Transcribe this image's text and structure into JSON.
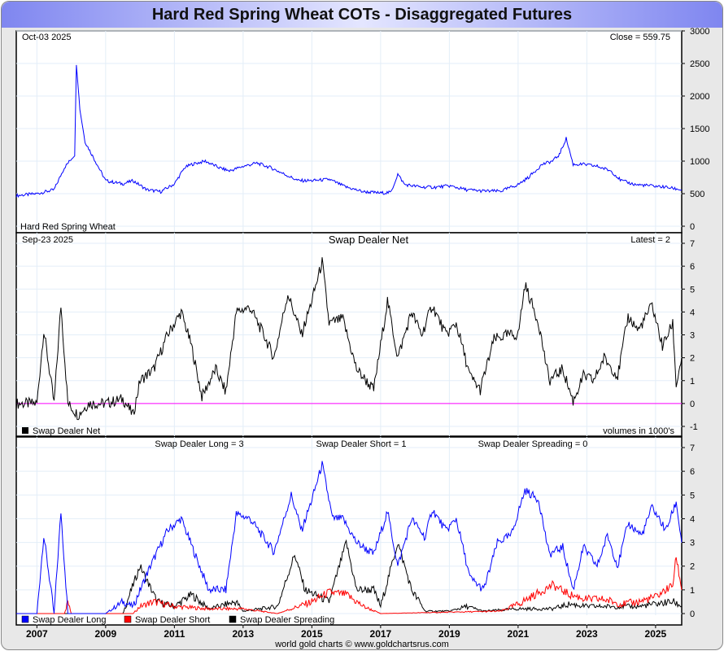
{
  "title": "Hard Red Spring Wheat COTs - Disaggregated Futures",
  "footer": "world gold charts © www.goldchartsrus.com",
  "colors": {
    "price": "#0000ff",
    "net": "#000000",
    "zero": "#ff00ff",
    "long": "#0000ff",
    "short": "#ff0000",
    "spreading": "#000000"
  },
  "chart_data": [
    {
      "type": "line",
      "panel": "price",
      "date": "Oct-03  2025",
      "readout": "Close = 559.75",
      "legend": "Hard Red Spring Wheat",
      "ylim": [
        0,
        3000
      ],
      "yticks": [
        0,
        500,
        1000,
        1500,
        2000,
        2500,
        3000
      ],
      "series": [
        {
          "name": "Hard Red Spring Wheat",
          "points": [
            [
              2006.4,
              470
            ],
            [
              2007.0,
              500
            ],
            [
              2007.5,
              560
            ],
            [
              2007.8,
              900
            ],
            [
              2008.1,
              1100
            ],
            [
              2008.15,
              2500
            ],
            [
              2008.25,
              1800
            ],
            [
              2008.4,
              1300
            ],
            [
              2008.7,
              1000
            ],
            [
              2009.0,
              700
            ],
            [
              2009.5,
              650
            ],
            [
              2009.8,
              700
            ],
            [
              2010.2,
              560
            ],
            [
              2010.6,
              530
            ],
            [
              2011.0,
              650
            ],
            [
              2011.3,
              900
            ],
            [
              2011.5,
              950
            ],
            [
              2011.9,
              1000
            ],
            [
              2012.3,
              900
            ],
            [
              2012.6,
              850
            ],
            [
              2013.0,
              920
            ],
            [
              2013.4,
              970
            ],
            [
              2013.8,
              900
            ],
            [
              2014.2,
              800
            ],
            [
              2014.6,
              700
            ],
            [
              2015.0,
              700
            ],
            [
              2015.5,
              720
            ],
            [
              2016.0,
              600
            ],
            [
              2016.5,
              530
            ],
            [
              2017.0,
              510
            ],
            [
              2017.3,
              520
            ],
            [
              2017.5,
              800
            ],
            [
              2017.7,
              640
            ],
            [
              2018.2,
              600
            ],
            [
              2018.6,
              600
            ],
            [
              2019.0,
              620
            ],
            [
              2019.5,
              560
            ],
            [
              2020.0,
              540
            ],
            [
              2020.5,
              540
            ],
            [
              2021.0,
              640
            ],
            [
              2021.3,
              750
            ],
            [
              2021.7,
              950
            ],
            [
              2022.0,
              1000
            ],
            [
              2022.2,
              1100
            ],
            [
              2022.4,
              1350
            ],
            [
              2022.6,
              950
            ],
            [
              2022.9,
              950
            ],
            [
              2023.3,
              920
            ],
            [
              2023.7,
              850
            ],
            [
              2024.0,
              700
            ],
            [
              2024.4,
              640
            ],
            [
              2024.9,
              620
            ],
            [
              2025.3,
              600
            ],
            [
              2025.76,
              560
            ]
          ]
        }
      ]
    },
    {
      "type": "line",
      "panel": "net",
      "date": "Sep-23  2025",
      "title": "Swap Dealer Net",
      "readout": "Latest = 2",
      "legend": "Swap Dealer Net",
      "note": "volumes in 1000's",
      "ylim": [
        -1,
        7
      ],
      "yticks": [
        -1,
        0,
        1,
        2,
        3,
        4,
        5,
        6,
        7
      ],
      "series": [
        {
          "name": "Swap Dealer Net",
          "points": [
            [
              2006.4,
              0
            ],
            [
              2007.0,
              0
            ],
            [
              2007.2,
              3.2
            ],
            [
              2007.5,
              0
            ],
            [
              2007.7,
              4.3
            ],
            [
              2007.9,
              0
            ],
            [
              2008.2,
              -0.5
            ],
            [
              2008.5,
              0
            ],
            [
              2009.0,
              0
            ],
            [
              2009.5,
              0.2
            ],
            [
              2009.8,
              -0.5
            ],
            [
              2010.0,
              1
            ],
            [
              2010.4,
              1.5
            ],
            [
              2010.8,
              3
            ],
            [
              2011.2,
              4
            ],
            [
              2011.5,
              2.5
            ],
            [
              2011.8,
              0.3
            ],
            [
              2012.2,
              1.5
            ],
            [
              2012.5,
              0.5
            ],
            [
              2012.8,
              4
            ],
            [
              2013.2,
              4.2
            ],
            [
              2013.6,
              3
            ],
            [
              2013.9,
              2
            ],
            [
              2014.3,
              4.8
            ],
            [
              2014.7,
              3
            ],
            [
              2015.0,
              4.5
            ],
            [
              2015.3,
              6.2
            ],
            [
              2015.5,
              3.5
            ],
            [
              2015.9,
              3.7
            ],
            [
              2016.3,
              1.5
            ],
            [
              2016.8,
              0.6
            ],
            [
              2017.2,
              4.5
            ],
            [
              2017.5,
              2
            ],
            [
              2017.9,
              4
            ],
            [
              2018.2,
              3
            ],
            [
              2018.5,
              4.3
            ],
            [
              2018.9,
              3
            ],
            [
              2019.2,
              3.5
            ],
            [
              2019.6,
              1.2
            ],
            [
              2019.9,
              0.6
            ],
            [
              2020.3,
              2.8
            ],
            [
              2020.7,
              3
            ],
            [
              2021.0,
              3
            ],
            [
              2021.2,
              5.2
            ],
            [
              2021.6,
              3.5
            ],
            [
              2021.9,
              1
            ],
            [
              2022.3,
              1.5
            ],
            [
              2022.6,
              0.1
            ],
            [
              2022.9,
              1.2
            ],
            [
              2023.2,
              1
            ],
            [
              2023.5,
              2
            ],
            [
              2023.9,
              1.2
            ],
            [
              2024.2,
              3.8
            ],
            [
              2024.5,
              3.2
            ],
            [
              2024.9,
              4.3
            ],
            [
              2025.2,
              2.5
            ],
            [
              2025.5,
              3.5
            ],
            [
              2025.6,
              0.8
            ],
            [
              2025.76,
              2
            ]
          ]
        }
      ]
    },
    {
      "type": "line",
      "panel": "components",
      "labels": [
        "Swap Dealer Long = 3",
        "Swap Dealer Short = 1",
        "Swap Dealer Spreading = 0"
      ],
      "ylim": [
        0,
        7
      ],
      "yticks": [
        0,
        1,
        2,
        3,
        4,
        5,
        6,
        7
      ],
      "xticks": [
        "2007",
        "2009",
        "2011",
        "2013",
        "2015",
        "2017",
        "2019",
        "2021",
        "2023",
        "2025"
      ],
      "series": [
        {
          "name": "Swap Dealer Long",
          "key": "long",
          "points": [
            [
              2006.4,
              0
            ],
            [
              2007.0,
              0
            ],
            [
              2007.2,
              3.3
            ],
            [
              2007.5,
              0
            ],
            [
              2007.7,
              4.3
            ],
            [
              2007.9,
              0
            ],
            [
              2009.0,
              0
            ],
            [
              2009.5,
              0.5
            ],
            [
              2009.8,
              0.3
            ],
            [
              2010.3,
              2
            ],
            [
              2010.8,
              3.5
            ],
            [
              2011.2,
              4
            ],
            [
              2011.6,
              2.5
            ],
            [
              2012.0,
              1
            ],
            [
              2012.5,
              1
            ],
            [
              2012.8,
              4.2
            ],
            [
              2013.2,
              4
            ],
            [
              2013.6,
              3.2
            ],
            [
              2013.9,
              2.6
            ],
            [
              2014.4,
              5
            ],
            [
              2014.7,
              3.5
            ],
            [
              2015.0,
              4.8
            ],
            [
              2015.3,
              6.3
            ],
            [
              2015.6,
              4
            ],
            [
              2015.9,
              4
            ],
            [
              2016.3,
              3
            ],
            [
              2016.8,
              2.5
            ],
            [
              2017.2,
              4.3
            ],
            [
              2017.5,
              2
            ],
            [
              2017.9,
              4
            ],
            [
              2018.3,
              3.2
            ],
            [
              2018.5,
              4.4
            ],
            [
              2018.9,
              3.5
            ],
            [
              2019.2,
              4
            ],
            [
              2019.6,
              1.5
            ],
            [
              2020.0,
              1
            ],
            [
              2020.4,
              3
            ],
            [
              2020.8,
              3.3
            ],
            [
              2021.2,
              5.2
            ],
            [
              2021.6,
              4.8
            ],
            [
              2021.9,
              2.5
            ],
            [
              2022.3,
              2.8
            ],
            [
              2022.6,
              1
            ],
            [
              2022.9,
              2.8
            ],
            [
              2023.3,
              2
            ],
            [
              2023.6,
              3.3
            ],
            [
              2023.9,
              2
            ],
            [
              2024.2,
              3.8
            ],
            [
              2024.6,
              3.3
            ],
            [
              2024.9,
              4.5
            ],
            [
              2025.3,
              3.5
            ],
            [
              2025.6,
              4.7
            ],
            [
              2025.76,
              3
            ]
          ]
        },
        {
          "name": "Swap Dealer Short",
          "key": "short",
          "points": [
            [
              2006.4,
              0
            ],
            [
              2007.8,
              0
            ],
            [
              2007.9,
              0.5
            ],
            [
              2008.0,
              0
            ],
            [
              2009.8,
              0
            ],
            [
              2010.0,
              0.3
            ],
            [
              2010.4,
              0.5
            ],
            [
              2011.0,
              0.3
            ],
            [
              2012.0,
              0.2
            ],
            [
              2013.0,
              0.2
            ],
            [
              2014.0,
              0
            ],
            [
              2015.0,
              0.5
            ],
            [
              2015.5,
              0.9
            ],
            [
              2016.0,
              0.8
            ],
            [
              2016.5,
              0.3
            ],
            [
              2017.0,
              0
            ],
            [
              2020.5,
              0.1
            ],
            [
              2021.0,
              0.4
            ],
            [
              2021.5,
              0.8
            ],
            [
              2022.0,
              1.2
            ],
            [
              2022.5,
              0.8
            ],
            [
              2023.0,
              0.6
            ],
            [
              2023.5,
              0.6
            ],
            [
              2024.0,
              0.4
            ],
            [
              2024.5,
              0.5
            ],
            [
              2025.0,
              0.7
            ],
            [
              2025.5,
              1.2
            ],
            [
              2025.6,
              2.4
            ],
            [
              2025.76,
              1
            ]
          ]
        },
        {
          "name": "Swap Dealer Spreading",
          "key": "spreading",
          "points": [
            [
              2006.4,
              0
            ],
            [
              2009.5,
              0
            ],
            [
              2010.0,
              2
            ],
            [
              2010.5,
              0.5
            ],
            [
              2011.0,
              0.3
            ],
            [
              2011.5,
              0.8
            ],
            [
              2012.0,
              0.2
            ],
            [
              2012.8,
              0.5
            ],
            [
              2013.0,
              0.1
            ],
            [
              2014.0,
              0.3
            ],
            [
              2014.5,
              2.5
            ],
            [
              2014.8,
              1
            ],
            [
              2015.5,
              0.5
            ],
            [
              2016.0,
              3
            ],
            [
              2016.3,
              1
            ],
            [
              2016.8,
              1
            ],
            [
              2017.0,
              0.3
            ],
            [
              2017.5,
              3
            ],
            [
              2017.9,
              1
            ],
            [
              2018.3,
              0.1
            ],
            [
              2019.0,
              0.1
            ],
            [
              2019.5,
              0.3
            ],
            [
              2020.0,
              0.1
            ],
            [
              2021.0,
              0.2
            ],
            [
              2022.0,
              0.2
            ],
            [
              2022.5,
              0.4
            ],
            [
              2023.0,
              0.3
            ],
            [
              2024.0,
              0.3
            ],
            [
              2024.5,
              0.3
            ],
            [
              2025.0,
              0.4
            ],
            [
              2025.5,
              0.5
            ],
            [
              2025.76,
              0.3
            ]
          ]
        }
      ]
    }
  ]
}
